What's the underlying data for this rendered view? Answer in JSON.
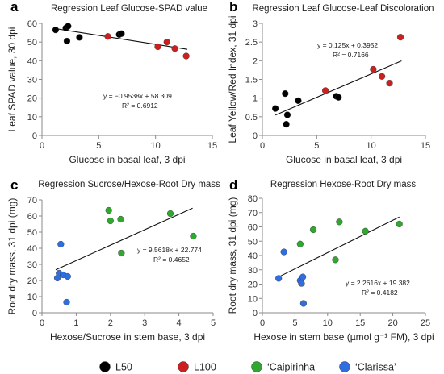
{
  "chart_data": [
    {
      "type": "scatter",
      "panel": "a",
      "title": "Regression Leaf Glucose-SPAD value",
      "xlabel": "Glucose in basal leaf, 3 dpi",
      "ylabel": "Leaf SPAD value, 30 dpi",
      "xlim": [
        0,
        15
      ],
      "ylim": [
        0,
        60
      ],
      "xticks": [
        0,
        5,
        10,
        15
      ],
      "yticks": [
        0,
        10,
        20,
        30,
        40,
        50,
        60
      ],
      "grid": false,
      "equation": "y = −0.9538x + 58.309",
      "r2": "R² = 0.6912",
      "trendline": {
        "slope": -0.9538,
        "intercept": 58.309,
        "x_range": [
          1.2,
          12.8
        ]
      },
      "series": [
        {
          "group": "L50",
          "x": [
            1.2,
            2.1,
            2.3,
            2.2,
            3.3,
            6.8,
            7.0
          ],
          "y": [
            56.5,
            57.5,
            58.5,
            50.5,
            52.5,
            54.0,
            54.5
          ]
        },
        {
          "group": "L100",
          "x": [
            5.8,
            10.2,
            11.0,
            11.7,
            12.7
          ],
          "y": [
            53.0,
            47.5,
            50.0,
            46.5,
            42.5
          ]
        }
      ]
    },
    {
      "type": "scatter",
      "panel": "b",
      "title": "Regression Leaf Glucose-Leaf Discoloration",
      "xlabel": "Glucose in basal leaf, 3 dpi",
      "ylabel": "Leaf Yellow/Red Index, 31 dpi",
      "xlim": [
        0,
        15
      ],
      "ylim": [
        0,
        3
      ],
      "xticks": [
        0,
        5,
        10,
        15
      ],
      "yticks": [
        0,
        0.5,
        1,
        1.5,
        2,
        2.5,
        3
      ],
      "grid": false,
      "equation": "y = 0.125x + 0.3952",
      "r2": "R² = 0.7166",
      "trendline": {
        "slope": 0.125,
        "intercept": 0.3952,
        "x_range": [
          1.2,
          12.8
        ]
      },
      "series": [
        {
          "group": "L50",
          "x": [
            1.2,
            2.2,
            2.3,
            2.1,
            3.3,
            6.8,
            7.0
          ],
          "y": [
            0.72,
            0.3,
            0.55,
            1.12,
            0.93,
            1.05,
            1.02
          ]
        },
        {
          "group": "L100",
          "x": [
            5.8,
            10.2,
            11.0,
            11.7,
            12.7
          ],
          "y": [
            1.2,
            1.77,
            1.58,
            1.4,
            2.63
          ]
        }
      ]
    },
    {
      "type": "scatter",
      "panel": "c",
      "title": "Regression Sucrose/Hexose-Root Dry mass",
      "xlabel": "Hexose/Sucrose in stem base, 3 dpi",
      "ylabel": "Root dry mass, 31 dpi  (mg)",
      "xlim": [
        0,
        5
      ],
      "ylim": [
        0,
        70
      ],
      "xticks": [
        0,
        1,
        2,
        3,
        4,
        5
      ],
      "yticks": [
        0,
        10,
        20,
        30,
        40,
        50,
        60,
        70
      ],
      "grid": false,
      "equation": "y = 9.5618x + 22.774",
      "r2": "R² = 0.4652",
      "trendline": {
        "slope": 9.5618,
        "intercept": 22.774,
        "x_range": [
          0.4,
          4.4
        ]
      },
      "series": [
        {
          "group": "Caipirinha",
          "x": [
            1.95,
            2.0,
            2.3,
            2.32,
            3.75,
            4.42
          ],
          "y": [
            63.5,
            57.0,
            58.0,
            37.0,
            61.5,
            47.5
          ]
        },
        {
          "group": "Clarissa",
          "x": [
            0.45,
            0.5,
            0.55,
            0.62,
            0.72,
            0.75
          ],
          "y": [
            21.5,
            24.5,
            42.5,
            23.5,
            6.5,
            22.5
          ]
        }
      ]
    },
    {
      "type": "scatter",
      "panel": "d",
      "title": "Regression Hexose-Root Dry mass",
      "xlabel": "Hexose in stem base (µmol g⁻¹ FM), 3 dpi",
      "ylabel": "Root dry mass, 31 dpi (mg)",
      "xlim": [
        0,
        25
      ],
      "ylim": [
        0,
        80
      ],
      "xticks": [
        0,
        5,
        10,
        15,
        20,
        25
      ],
      "yticks": [
        0,
        10,
        20,
        30,
        40,
        50,
        60,
        70,
        80
      ],
      "grid": false,
      "equation": "y = 2.2616x + 19.382",
      "r2": "R² = 0.4182",
      "trendline": {
        "slope": 2.2616,
        "intercept": 19.382,
        "x_range": [
          2.5,
          21.0
        ]
      },
      "series": [
        {
          "group": "Caipirinha",
          "x": [
            5.8,
            7.8,
            11.2,
            11.8,
            15.8,
            21.0
          ],
          "y": [
            48.0,
            58.0,
            37.0,
            63.5,
            57.0,
            62.0
          ]
        },
        {
          "group": "Clarissa",
          "x": [
            2.5,
            3.3,
            5.8,
            6.0,
            6.2,
            6.3
          ],
          "y": [
            24.0,
            42.5,
            22.5,
            20.5,
            25.0,
            6.5
          ]
        }
      ]
    }
  ],
  "panel_labels": [
    "a",
    "b",
    "c",
    "d"
  ],
  "legend": {
    "placement": "bottom",
    "items": [
      {
        "key": "L50",
        "label": "L50",
        "color": "#000000"
      },
      {
        "key": "L100",
        "label": "L100",
        "color": "#cc1f1f"
      },
      {
        "key": "Caipirinha",
        "label": "‘Caipirinha’",
        "color": "#2ea82e"
      },
      {
        "key": "Clarissa",
        "label": "‘Clarissa’",
        "color": "#2f6ee0"
      }
    ]
  }
}
